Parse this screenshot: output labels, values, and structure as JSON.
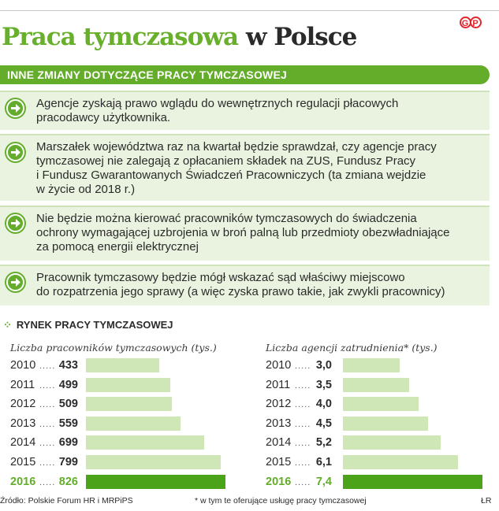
{
  "header": {
    "title_part1": "Praca tymczasowa",
    "title_part2": "w Polsce",
    "logo": "GP",
    "accent": "#63ad2a"
  },
  "banner": {
    "label": "INNE ZMIANY DOTYCZĄCE PRACY TYMCZASOWEJ"
  },
  "changes": [
    {
      "icon": "arrow-right-icon",
      "lines": [
        "Agencje zyskają prawo wglądu do wewnętrznych regulacji płacowych",
        "pracodawcy użytkownika."
      ]
    },
    {
      "icon": "arrow-right-icon",
      "lines": [
        "Marszałek województwa raz na kwartał będzie sprawdzał, czy agencje pracy",
        "tymczasowej nie zalegają z opłacaniem składek na ZUS, Fundusz Pracy",
        "i Fundusz Gwarantowanych Świadczeń Pracowniczych (ta zmiana wejdzie",
        "w życie od 2018 r.)"
      ]
    },
    {
      "icon": "arrow-right-icon",
      "lines": [
        "Nie będzie można kierować pracowników tymczasowych do świadczenia",
        "ochrony wymagającej uzbrojenia w broń palną lub przedmioty obezwładniające",
        "za pomocą energii elektrycznej"
      ]
    },
    {
      "icon": "arrow-right-icon",
      "lines": [
        "Pracownik tymczasowy będzie mógł wskazać sąd właściwy miejscowo",
        "do rozpatrzenia jego sprawy (a więc zyska prawo takie, jak zwykli pracownicy)"
      ]
    }
  ],
  "market": {
    "label": "RYNEK PRACY TYMCZASOWEJ"
  },
  "chart_data": [
    {
      "type": "bar",
      "title": "Liczba pracowników tymczasowych (tys.)",
      "categories": [
        "2010",
        "2011",
        "2012",
        "2013",
        "2014",
        "2015",
        "2016"
      ],
      "values": [
        433,
        499,
        509,
        559,
        699,
        799,
        826
      ],
      "labels": [
        "433",
        "499",
        "509",
        "559",
        "699",
        "799",
        "826"
      ],
      "highlight": "2016",
      "bar_color": "#cfe6b7",
      "highlight_color": "#4ba319",
      "xlim": [
        0,
        845
      ]
    },
    {
      "type": "bar",
      "title": "Liczba agencji zatrudnienia* (tys.)",
      "categories": [
        "2010",
        "2011",
        "2012",
        "2013",
        "2014",
        "2015",
        "2016"
      ],
      "values": [
        3.0,
        3.5,
        4.0,
        4.5,
        5.2,
        6.1,
        7.4
      ],
      "labels": [
        "3,0",
        "3,5",
        "4,0",
        "4,5",
        "5,2",
        "6,1",
        "7,4"
      ],
      "highlight": "2016",
      "bar_color": "#cfe6b7",
      "highlight_color": "#4ba319",
      "xlim": [
        0,
        7.52
      ]
    }
  ],
  "footer": {
    "source": "Źródło: Polskie Forum HR i MRPiPS",
    "note": "* w tym te oferujące usługę pracy tymczasowej",
    "author": "ŁR"
  }
}
